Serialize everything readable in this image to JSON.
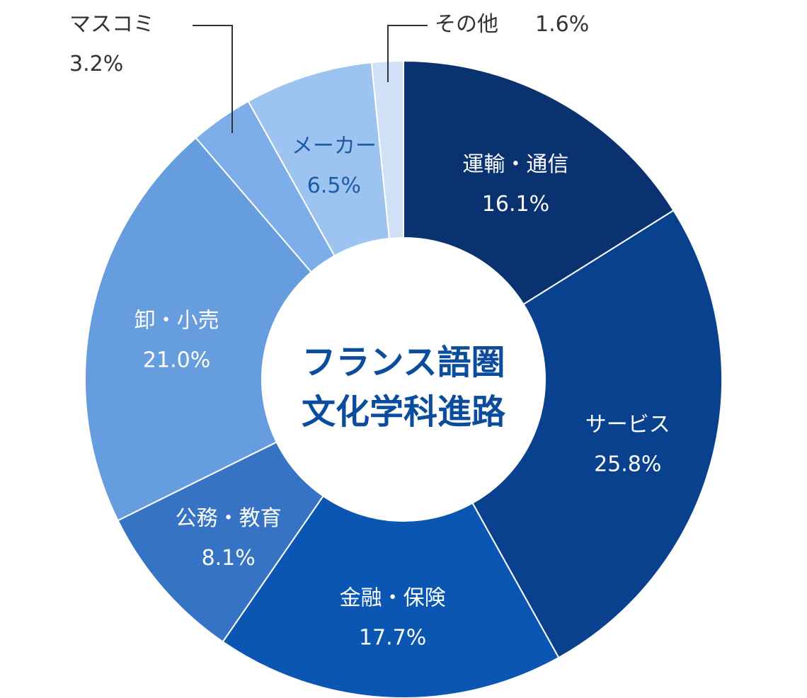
{
  "chart_data": {
    "type": "pie",
    "center_title_lines": [
      "フランス語圏",
      "文化学科進路"
    ],
    "slices": [
      {
        "label": "運輸・通信",
        "value": 16.1,
        "value_text": "16.1%",
        "color": "#0a3270",
        "text_color": "#ffffff"
      },
      {
        "label": "サービス",
        "value": 25.8,
        "value_text": "25.8%",
        "color": "#0a418f",
        "text_color": "#ffffff"
      },
      {
        "label": "金融・保険",
        "value": 17.7,
        "value_text": "17.7%",
        "color": "#0b56b3",
        "text_color": "#ffffff"
      },
      {
        "label": "公務・教育",
        "value": 8.1,
        "value_text": "8.1%",
        "color": "#3673c4",
        "text_color": "#ffffff"
      },
      {
        "label": "卸・小売",
        "value": 21.0,
        "value_text": "21.0%",
        "color": "#659ddf",
        "text_color": "#ffffff"
      },
      {
        "label": "マスコミ",
        "value": 3.2,
        "value_text": "3.2%",
        "color": "#7eaee9",
        "text_color": "#333333"
      },
      {
        "label": "メーカー",
        "value": 6.5,
        "value_text": "6.5%",
        "color": "#9dc4f0",
        "text_color": "#1f5aa6"
      },
      {
        "label": "その他",
        "value": 1.6,
        "value_text": "1.6%",
        "color": "#cfe0f7",
        "text_color": "#333333"
      }
    ],
    "outside_labels": {
      "mascomi": {
        "label": "マスコミ",
        "value_text": "3.2%"
      },
      "other": {
        "label": "その他",
        "value_text": "1.6%"
      }
    },
    "legend": "none"
  }
}
